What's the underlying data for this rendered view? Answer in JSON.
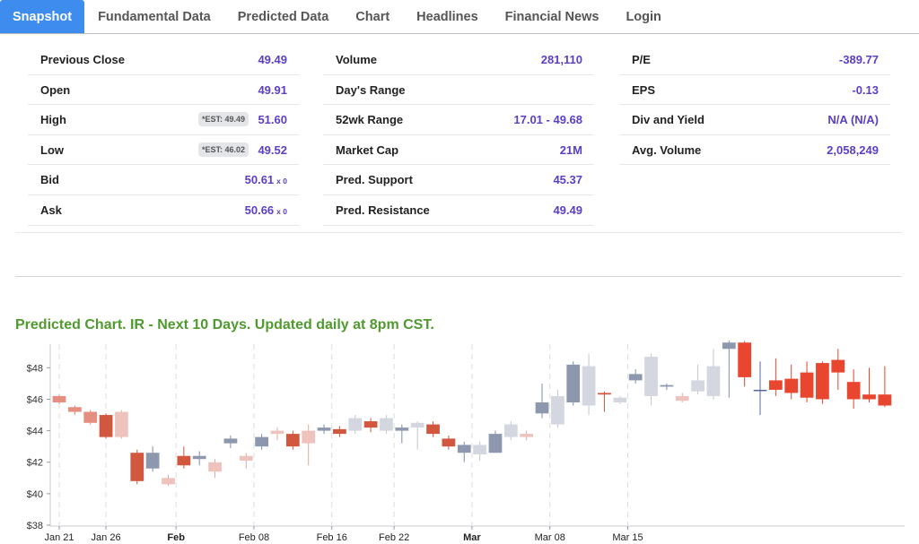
{
  "tabs": [
    {
      "label": "Snapshot",
      "active": true
    },
    {
      "label": "Fundamental Data"
    },
    {
      "label": "Predicted Data"
    },
    {
      "label": "Chart"
    },
    {
      "label": "Headlines"
    },
    {
      "label": "Financial News"
    },
    {
      "label": "Login"
    }
  ],
  "snapshot": {
    "col1": [
      {
        "label": "Previous Close",
        "value": "49.49"
      },
      {
        "label": "Open",
        "value": "49.91"
      },
      {
        "label": "High",
        "value": "51.60",
        "est": "*EST: 49.49"
      },
      {
        "label": "Low",
        "value": "49.52",
        "est": "*EST: 46.02"
      },
      {
        "label": "Bid",
        "value": "50.61",
        "suffix": "x 0"
      },
      {
        "label": "Ask",
        "value": "50.66",
        "suffix": "x 0"
      }
    ],
    "col2": [
      {
        "label": "Volume",
        "value": "281,110"
      },
      {
        "label": "Day's Range",
        "value": ""
      },
      {
        "label": "52wk Range",
        "value": "17.01 - 49.68"
      },
      {
        "label": "Market Cap",
        "value": "21M"
      },
      {
        "label": "Pred. Support",
        "value": "45.37"
      },
      {
        "label": "Pred. Resistance",
        "value": "49.49"
      }
    ],
    "col3": [
      {
        "label": "P/E",
        "value": "-389.77"
      },
      {
        "label": "EPS",
        "value": "-0.13"
      },
      {
        "label": "Div and Yield",
        "value": "N/A (N/A)"
      },
      {
        "label": "Avg. Volume",
        "value": "2,058,249"
      }
    ]
  },
  "predicted_title": "Predicted Chart. IR - Next 10 Days. Updated daily at 8pm CST.",
  "colors": {
    "tab_active": "#3f8cef",
    "value_purple": "#5b3fc4",
    "title_green": "#4f9a2e",
    "down_red": "#e8462f",
    "up_blue": "#7f8ca8"
  },
  "chart_data": {
    "type": "candlestick",
    "title": "Predicted Chart. IR - Next 10 Days. Updated daily at 8pm CST.",
    "ylim": [
      38,
      49.5
    ],
    "yticks": [
      "$38",
      "$40",
      "$42",
      "$44",
      "$46",
      "$48"
    ],
    "ytick_values": [
      38,
      40,
      42,
      44,
      46,
      48
    ],
    "xticks": [
      {
        "label": "Jan 21",
        "index": 0,
        "bold": false
      },
      {
        "label": "Jan 26",
        "index": 3,
        "bold": false
      },
      {
        "label": "Feb",
        "index": 7.5,
        "bold": true
      },
      {
        "label": "Feb 08",
        "index": 12.5,
        "bold": false
      },
      {
        "label": "Feb 16",
        "index": 17.5,
        "bold": false
      },
      {
        "label": "Feb 22",
        "index": 21.5,
        "bold": false
      },
      {
        "label": "Mar",
        "index": 26.5,
        "bold": true
      },
      {
        "label": "Mar 08",
        "index": 31.5,
        "bold": false
      },
      {
        "label": "Mar 15",
        "index": 36.5,
        "bold": false
      }
    ],
    "candles": [
      {
        "o": 46.2,
        "c": 45.8,
        "h": 46.3,
        "l": 45.7,
        "s": "h"
      },
      {
        "o": 45.5,
        "c": 45.2,
        "h": 45.6,
        "l": 45.0,
        "s": "h"
      },
      {
        "o": 45.2,
        "c": 44.5,
        "h": 45.3,
        "l": 44.4,
        "s": "h"
      },
      {
        "o": 45.0,
        "c": 43.6,
        "h": 45.1,
        "l": 43.5,
        "s": "d"
      },
      {
        "o": 45.2,
        "c": 43.6,
        "h": 45.3,
        "l": 43.5,
        "s": "l"
      },
      {
        "o": 42.6,
        "c": 40.8,
        "h": 42.8,
        "l": 40.6,
        "s": "d"
      },
      {
        "o": 41.6,
        "c": 42.6,
        "h": 43.0,
        "l": 41.4,
        "s": "b"
      },
      {
        "o": 41.0,
        "c": 40.6,
        "h": 41.2,
        "l": 40.5,
        "s": "l"
      },
      {
        "o": 42.4,
        "c": 41.8,
        "h": 43.0,
        "l": 41.6,
        "s": "d"
      },
      {
        "o": 42.2,
        "c": 42.4,
        "h": 42.7,
        "l": 41.8,
        "s": "b"
      },
      {
        "o": 42.0,
        "c": 41.4,
        "h": 42.2,
        "l": 41.0,
        "s": "l"
      },
      {
        "o": 43.2,
        "c": 43.5,
        "h": 43.7,
        "l": 42.9,
        "s": "b"
      },
      {
        "o": 42.4,
        "c": 42.1,
        "h": 42.6,
        "l": 41.6,
        "s": "l"
      },
      {
        "o": 43.0,
        "c": 43.6,
        "h": 43.8,
        "l": 42.8,
        "s": "b"
      },
      {
        "o": 44.0,
        "c": 43.8,
        "h": 44.2,
        "l": 43.4,
        "s": "l"
      },
      {
        "o": 43.8,
        "c": 43.0,
        "h": 44.0,
        "l": 42.8,
        "s": "d"
      },
      {
        "o": 43.2,
        "c": 44.0,
        "h": 44.4,
        "l": 41.8,
        "s": "l"
      },
      {
        "o": 44.0,
        "c": 44.2,
        "h": 44.4,
        "l": 43.8,
        "s": "b"
      },
      {
        "o": 44.1,
        "c": 43.8,
        "h": 44.3,
        "l": 43.6,
        "s": "d"
      },
      {
        "o": 44.8,
        "c": 44.0,
        "h": 45.0,
        "l": 43.8,
        "s": "g"
      },
      {
        "o": 44.6,
        "c": 44.2,
        "h": 44.8,
        "l": 43.9,
        "s": "d"
      },
      {
        "o": 44.0,
        "c": 44.8,
        "h": 45.0,
        "l": 43.8,
        "s": "g"
      },
      {
        "o": 44.0,
        "c": 44.2,
        "h": 44.4,
        "l": 43.2,
        "s": "b"
      },
      {
        "o": 44.5,
        "c": 44.2,
        "h": 44.6,
        "l": 42.8,
        "s": "g"
      },
      {
        "o": 44.4,
        "c": 43.8,
        "h": 44.6,
        "l": 43.6,
        "s": "d"
      },
      {
        "o": 43.5,
        "c": 43.0,
        "h": 43.7,
        "l": 42.8,
        "s": "d"
      },
      {
        "o": 42.6,
        "c": 43.1,
        "h": 43.3,
        "l": 42.0,
        "s": "b"
      },
      {
        "o": 42.5,
        "c": 43.1,
        "h": 43.3,
        "l": 42.1,
        "s": "g"
      },
      {
        "o": 42.6,
        "c": 43.8,
        "h": 44.0,
        "l": 42.6,
        "s": "b"
      },
      {
        "o": 43.6,
        "c": 44.4,
        "h": 44.6,
        "l": 43.4,
        "s": "g"
      },
      {
        "o": 43.8,
        "c": 43.6,
        "h": 44.0,
        "l": 43.4,
        "s": "l"
      },
      {
        "o": 45.1,
        "c": 45.8,
        "h": 47.0,
        "l": 44.8,
        "s": "b"
      },
      {
        "o": 44.4,
        "c": 46.2,
        "h": 46.6,
        "l": 44.2,
        "s": "g"
      },
      {
        "o": 45.8,
        "c": 48.2,
        "h": 48.4,
        "l": 45.6,
        "s": "b"
      },
      {
        "o": 45.6,
        "c": 48.1,
        "h": 48.9,
        "l": 45.0,
        "s": "g"
      },
      {
        "o": 46.4,
        "c": 46.3,
        "h": 46.5,
        "l": 45.2,
        "s": "d"
      },
      {
        "o": 45.8,
        "c": 46.1,
        "h": 46.2,
        "l": 45.7,
        "s": "g"
      },
      {
        "o": 47.2,
        "c": 47.6,
        "h": 47.9,
        "l": 47.0,
        "s": "b"
      },
      {
        "o": 46.2,
        "c": 48.7,
        "h": 48.9,
        "l": 45.6,
        "s": "g"
      },
      {
        "o": 46.8,
        "c": 46.9,
        "h": 47.0,
        "l": 46.6,
        "s": "b"
      },
      {
        "o": 46.2,
        "c": 45.9,
        "h": 46.4,
        "l": 45.8,
        "s": "l"
      },
      {
        "o": 46.5,
        "c": 47.2,
        "h": 48.2,
        "l": 46.3,
        "s": "g"
      },
      {
        "o": 46.2,
        "c": 48.1,
        "h": 49.2,
        "l": 46.0,
        "s": "g"
      },
      {
        "o": 49.2,
        "c": 49.6,
        "h": 49.8,
        "l": 46.1,
        "s": "b"
      },
      {
        "o": 49.6,
        "c": 47.4,
        "h": 49.7,
        "l": 46.8,
        "s": "r"
      },
      {
        "o": 46.6,
        "c": 46.6,
        "h": 48.4,
        "l": 45.0,
        "s": "n"
      },
      {
        "o": 47.2,
        "c": 46.6,
        "h": 48.6,
        "l": 46.2,
        "s": "r"
      },
      {
        "o": 47.3,
        "c": 46.4,
        "h": 48.2,
        "l": 46.0,
        "s": "r"
      },
      {
        "o": 47.7,
        "c": 46.1,
        "h": 48.4,
        "l": 45.8,
        "s": "r"
      },
      {
        "o": 48.3,
        "c": 46.0,
        "h": 48.4,
        "l": 45.7,
        "s": "r"
      },
      {
        "o": 48.5,
        "c": 47.7,
        "h": 49.2,
        "l": 46.6,
        "s": "r"
      },
      {
        "o": 47.1,
        "c": 46.0,
        "h": 47.9,
        "l": 45.4,
        "s": "r"
      },
      {
        "o": 46.3,
        "c": 46.0,
        "h": 48.0,
        "l": 45.8,
        "s": "r"
      },
      {
        "o": 46.3,
        "c": 45.6,
        "h": 48.1,
        "l": 45.5,
        "s": "r"
      }
    ]
  }
}
